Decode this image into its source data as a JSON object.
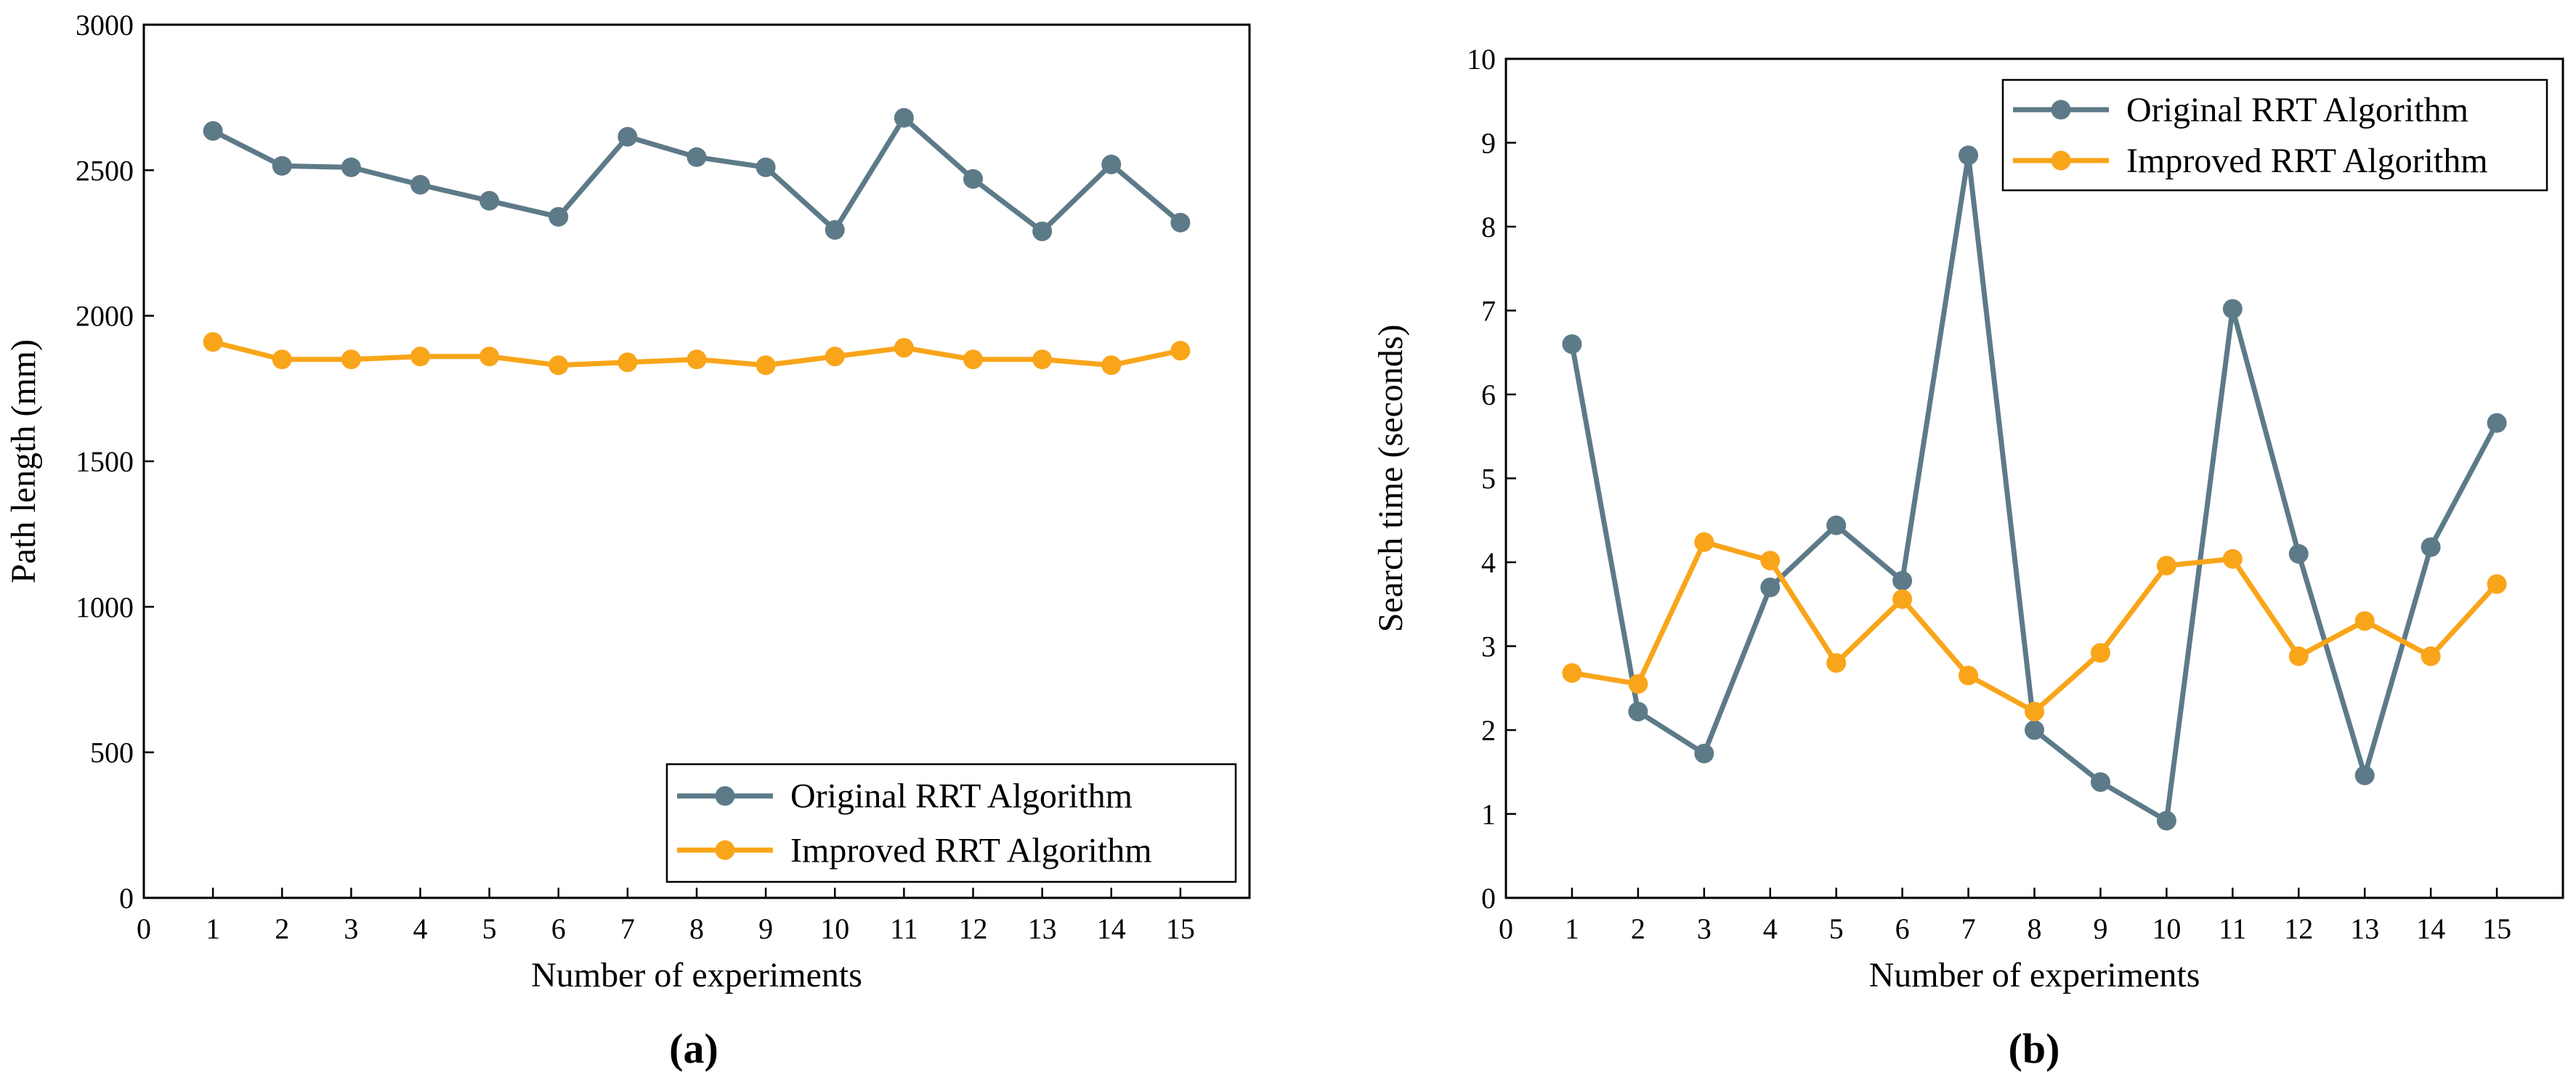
{
  "chart_data": [
    {
      "type": "line",
      "panel_label": "(a)",
      "xlabel": "Number of experiments",
      "ylabel": "Path length (mm)",
      "xlim": [
        0,
        16
      ],
      "ylim": [
        0,
        3000
      ],
      "x": [
        1,
        2,
        3,
        4,
        5,
        6,
        7,
        8,
        9,
        10,
        11,
        12,
        13,
        14,
        15
      ],
      "xticks": [
        0,
        1,
        2,
        3,
        4,
        5,
        6,
        7,
        8,
        9,
        10,
        11,
        12,
        13,
        14,
        15
      ],
      "yticks": [
        0,
        500,
        1000,
        1500,
        2000,
        2500,
        3000
      ],
      "legend_position": "bottom-right",
      "series": [
        {
          "name": "Original RRT Algorithm",
          "color": "#5d7a88",
          "values": [
            2635,
            2515,
            2510,
            2450,
            2395,
            2340,
            2615,
            2545,
            2510,
            2295,
            2680,
            2470,
            2290,
            2520,
            2320
          ]
        },
        {
          "name": "Improved RRT Algorithm",
          "color": "#f9a51a",
          "values": [
            1910,
            1850,
            1850,
            1860,
            1860,
            1830,
            1840,
            1850,
            1830,
            1860,
            1890,
            1850,
            1850,
            1830,
            1880
          ]
        }
      ]
    },
    {
      "type": "line",
      "panel_label": "(b)",
      "xlabel": "Number of experiments",
      "ylabel": "Search time (seconds)",
      "xlim": [
        0,
        16
      ],
      "ylim": [
        0,
        10
      ],
      "x": [
        1,
        2,
        3,
        4,
        5,
        6,
        7,
        8,
        9,
        10,
        11,
        12,
        13,
        14,
        15
      ],
      "xticks": [
        0,
        1,
        2,
        3,
        4,
        5,
        6,
        7,
        8,
        9,
        10,
        11,
        12,
        13,
        14,
        15
      ],
      "yticks": [
        0,
        1,
        2,
        3,
        4,
        5,
        6,
        7,
        8,
        9,
        10
      ],
      "legend_position": "top-right",
      "series": [
        {
          "name": "Original RRT Algorithm",
          "color": "#5d7a88",
          "values": [
            6.6,
            2.22,
            1.72,
            3.7,
            4.44,
            3.78,
            8.85,
            2.0,
            1.38,
            0.92,
            7.02,
            4.1,
            1.46,
            4.18,
            5.66
          ]
        },
        {
          "name": "Improved RRT Algorithm",
          "color": "#f9a51a",
          "values": [
            2.68,
            2.55,
            4.24,
            4.02,
            2.8,
            3.56,
            2.65,
            2.22,
            2.92,
            3.96,
            4.04,
            2.88,
            3.3,
            2.88,
            3.74
          ]
        }
      ]
    }
  ]
}
